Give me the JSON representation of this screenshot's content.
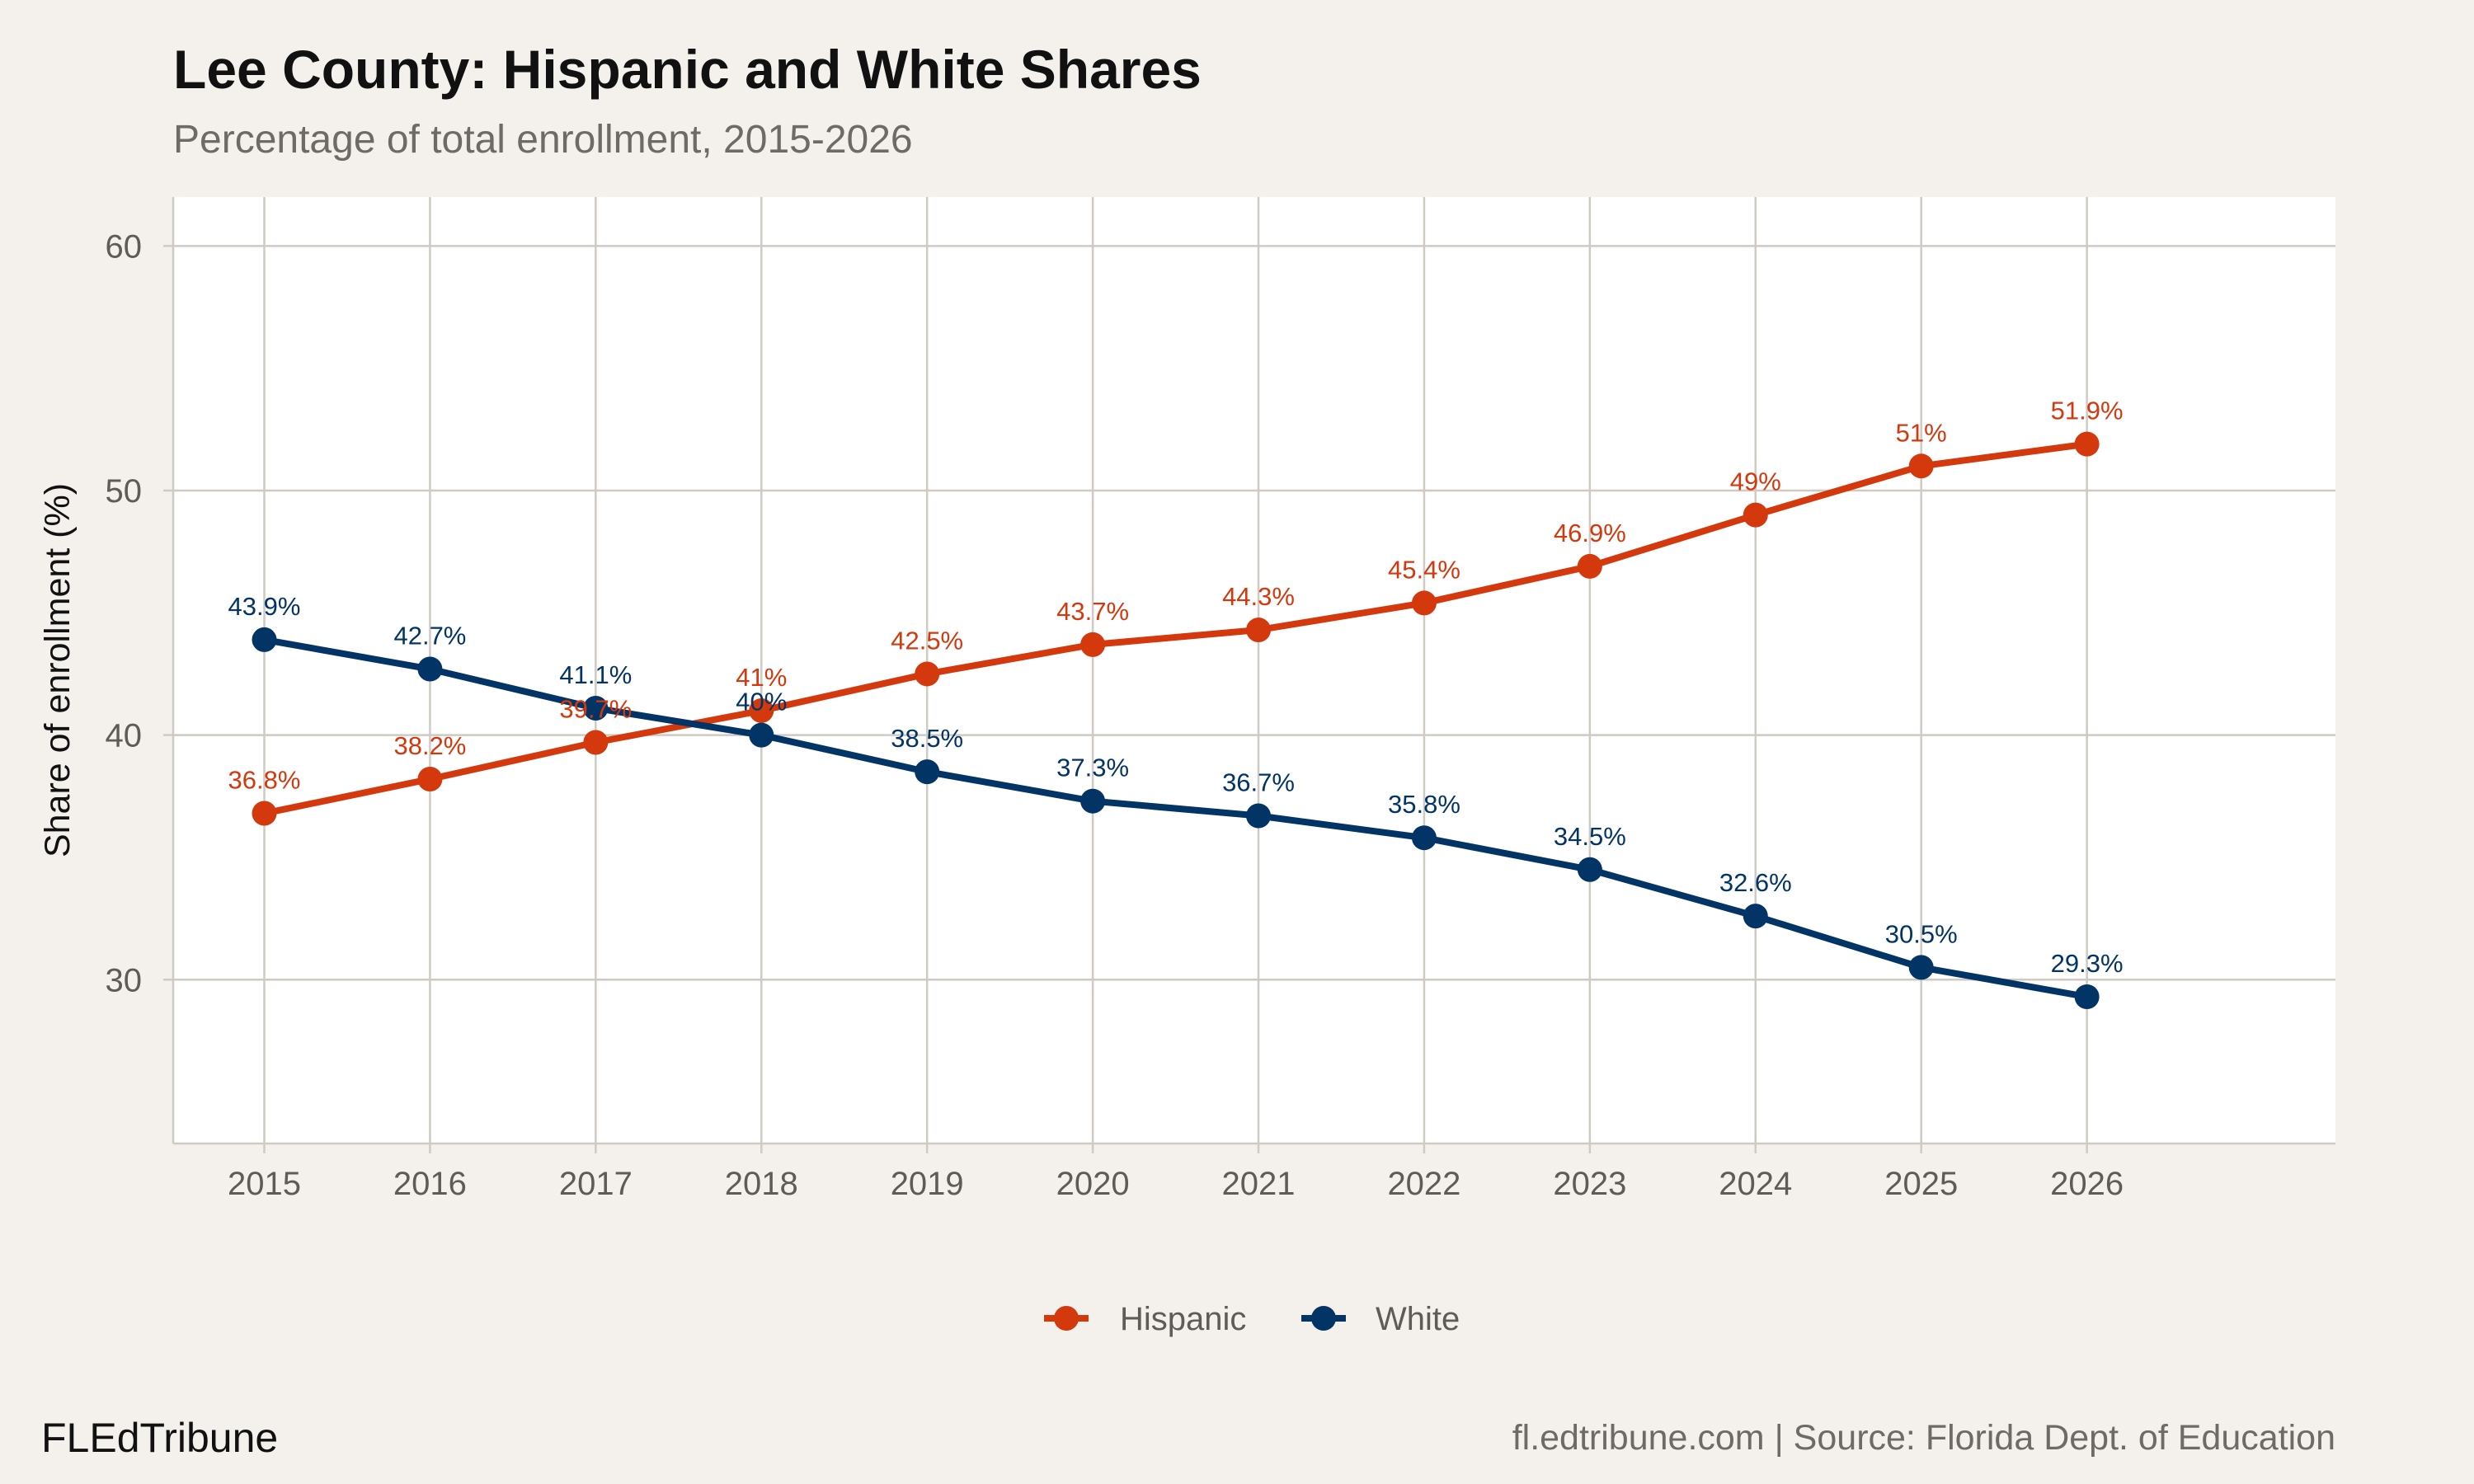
{
  "title": "Lee County: Hispanic and White Shares",
  "subtitle": "Percentage of total enrollment, 2015-2026",
  "brand": "FLEdTribune",
  "caption": "fl.edtribune.com | Source: Florida Dept. of Education",
  "chart_data": {
    "type": "line",
    "title": "Lee County: Hispanic and White Shares",
    "subtitle": "Percentage of total enrollment, 2015-2026",
    "xlabel": "",
    "ylabel": "Share of enrollment (%)",
    "x": [
      2015,
      2016,
      2017,
      2018,
      2019,
      2020,
      2021,
      2022,
      2023,
      2024,
      2025,
      2026
    ],
    "xlim": [
      2014.45,
      2027.5
    ],
    "ylim": [
      23.3,
      62
    ],
    "yticks": [
      30,
      40,
      50,
      60
    ],
    "grid": true,
    "legend_position": "bottom",
    "series": [
      {
        "name": "Hispanic",
        "color": "#d4380d",
        "values": [
          36.8,
          38.2,
          39.7,
          41,
          42.5,
          43.7,
          44.3,
          45.4,
          46.9,
          49,
          51,
          51.9
        ],
        "labels": [
          "36.8%",
          "38.2%",
          "39.7%",
          "41%",
          "42.5%",
          "43.7%",
          "44.3%",
          "45.4%",
          "46.9%",
          "49%",
          "51%",
          "51.9%"
        ]
      },
      {
        "name": "White",
        "color": "#023466",
        "values": [
          43.9,
          42.7,
          41.1,
          40,
          38.5,
          37.3,
          36.7,
          35.8,
          34.5,
          32.6,
          30.5,
          29.3
        ],
        "labels": [
          "43.9%",
          "42.7%",
          "41.1%",
          "40%",
          "38.5%",
          "37.3%",
          "36.7%",
          "35.8%",
          "34.5%",
          "32.6%",
          "30.5%",
          "29.3%"
        ]
      }
    ]
  }
}
